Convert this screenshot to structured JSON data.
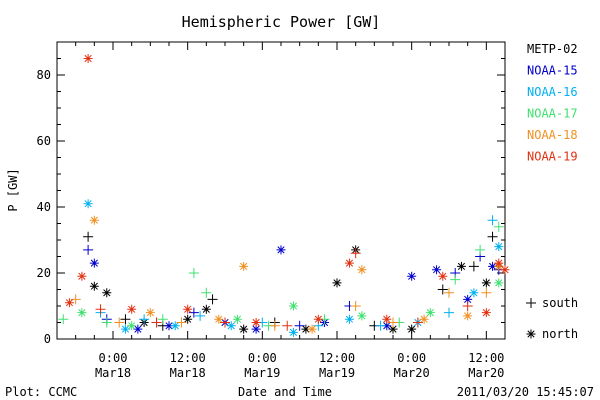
{
  "chart_data": {
    "type": "scatter",
    "title": "Hemispheric Power [GW]",
    "ylabel": "P [GW]",
    "xlabel": "Date and Time",
    "ylim": [
      0,
      90
    ],
    "y_ticks": [
      0,
      20,
      40,
      60,
      80
    ],
    "x_range": [
      "2011-03-17T15:00",
      "2011-03-20T15:00"
    ],
    "x_ticks": [
      {
        "t": "2011-03-18T00:00",
        "time": "0:00",
        "date": "Mar18"
      },
      {
        "t": "2011-03-18T12:00",
        "time": "12:00",
        "date": "Mar18"
      },
      {
        "t": "2011-03-19T00:00",
        "time": "0:00",
        "date": "Mar19"
      },
      {
        "t": "2011-03-19T12:00",
        "time": "12:00",
        "date": "Mar19"
      },
      {
        "t": "2011-03-20T00:00",
        "time": "0:00",
        "date": "Mar20"
      },
      {
        "t": "2011-03-20T12:00",
        "time": "12:00",
        "date": "Mar20"
      }
    ],
    "marker_legend": [
      {
        "symbol": "+",
        "label": "south"
      },
      {
        "symbol": "*",
        "label": "north"
      }
    ],
    "series": [
      {
        "name": "METP-02",
        "color": "#000000",
        "points": [
          [
            "2011-03-17T20:00",
            31,
            "+"
          ],
          [
            "2011-03-17T21:00",
            16,
            "*"
          ],
          [
            "2011-03-17T23:00",
            14,
            "*"
          ],
          [
            "2011-03-18T02:00",
            6,
            "+"
          ],
          [
            "2011-03-18T05:00",
            5,
            "*"
          ],
          [
            "2011-03-18T08:00",
            4,
            "+"
          ],
          [
            "2011-03-18T12:00",
            6,
            "*"
          ],
          [
            "2011-03-18T15:00",
            9,
            "*"
          ],
          [
            "2011-03-18T16:00",
            12,
            "+"
          ],
          [
            "2011-03-18T21:00",
            3,
            "*"
          ],
          [
            "2011-03-19T02:00",
            5,
            "+"
          ],
          [
            "2011-03-19T07:00",
            3,
            "*"
          ],
          [
            "2011-03-19T12:00",
            17,
            "*"
          ],
          [
            "2011-03-19T15:00",
            27,
            "*"
          ],
          [
            "2011-03-19T18:00",
            4,
            "+"
          ],
          [
            "2011-03-19T21:00",
            3,
            "*"
          ],
          [
            "2011-03-20T00:00",
            3,
            "*"
          ],
          [
            "2011-03-20T05:00",
            15,
            "+"
          ],
          [
            "2011-03-20T08:00",
            22,
            "*"
          ],
          [
            "2011-03-20T10:00",
            22,
            "+"
          ],
          [
            "2011-03-20T12:00",
            17,
            "*"
          ],
          [
            "2011-03-20T13:00",
            31,
            "+"
          ],
          [
            "2011-03-20T14:00",
            22,
            "*"
          ]
        ]
      },
      {
        "name": "NOAA-15",
        "color": "#0000cc",
        "points": [
          [
            "2011-03-17T20:00",
            27,
            "+"
          ],
          [
            "2011-03-17T21:00",
            23,
            "*"
          ],
          [
            "2011-03-17T23:00",
            6,
            "+"
          ],
          [
            "2011-03-18T04:00",
            3,
            "*"
          ],
          [
            "2011-03-18T07:00",
            5,
            "+"
          ],
          [
            "2011-03-18T09:00",
            4,
            "*"
          ],
          [
            "2011-03-18T13:00",
            8,
            "+"
          ],
          [
            "2011-03-18T18:00",
            5,
            "*"
          ],
          [
            "2011-03-18T23:00",
            3,
            "*"
          ],
          [
            "2011-03-19T03:00",
            27,
            "*"
          ],
          [
            "2011-03-19T06:00",
            4,
            "+"
          ],
          [
            "2011-03-19T10:00",
            5,
            "*"
          ],
          [
            "2011-03-19T14:00",
            10,
            "+"
          ],
          [
            "2011-03-19T20:00",
            4,
            "*"
          ],
          [
            "2011-03-20T00:00",
            19,
            "*"
          ],
          [
            "2011-03-20T04:00",
            21,
            "*"
          ],
          [
            "2011-03-20T07:00",
            20,
            "+"
          ],
          [
            "2011-03-20T09:00",
            12,
            "*"
          ],
          [
            "2011-03-20T11:00",
            25,
            "+"
          ],
          [
            "2011-03-20T13:00",
            22,
            "*"
          ],
          [
            "2011-03-20T14:00",
            21,
            "+"
          ]
        ]
      },
      {
        "name": "NOAA-16",
        "color": "#00b0f0",
        "points": [
          [
            "2011-03-17T20:00",
            41,
            "*"
          ],
          [
            "2011-03-17T22:00",
            8,
            "+"
          ],
          [
            "2011-03-18T02:00",
            3,
            "*"
          ],
          [
            "2011-03-18T05:00",
            6,
            "+"
          ],
          [
            "2011-03-18T10:00",
            4,
            "*"
          ],
          [
            "2011-03-18T14:00",
            7,
            "+"
          ],
          [
            "2011-03-18T19:00",
            4,
            "*"
          ],
          [
            "2011-03-19T00:00",
            5,
            "+"
          ],
          [
            "2011-03-19T05:00",
            2,
            "*"
          ],
          [
            "2011-03-19T09:00",
            4,
            "+"
          ],
          [
            "2011-03-19T14:00",
            6,
            "*"
          ],
          [
            "2011-03-19T19:00",
            4,
            "+"
          ],
          [
            "2011-03-20T01:00",
            5,
            "*"
          ],
          [
            "2011-03-20T06:00",
            8,
            "+"
          ],
          [
            "2011-03-20T10:00",
            14,
            "*"
          ],
          [
            "2011-03-20T13:00",
            36,
            "+"
          ],
          [
            "2011-03-20T14:00",
            28,
            "*"
          ]
        ]
      },
      {
        "name": "NOAA-17",
        "color": "#40e070",
        "points": [
          [
            "2011-03-17T16:00",
            6,
            "+"
          ],
          [
            "2011-03-17T19:00",
            8,
            "*"
          ],
          [
            "2011-03-17T23:00",
            5,
            "+"
          ],
          [
            "2011-03-18T03:00",
            4,
            "*"
          ],
          [
            "2011-03-18T08:00",
            6,
            "+"
          ],
          [
            "2011-03-18T13:00",
            20,
            "+"
          ],
          [
            "2011-03-18T15:00",
            14,
            "+"
          ],
          [
            "2011-03-18T20:00",
            6,
            "*"
          ],
          [
            "2011-03-19T01:00",
            4,
            "+"
          ],
          [
            "2011-03-19T05:00",
            10,
            "*"
          ],
          [
            "2011-03-19T10:00",
            6,
            "+"
          ],
          [
            "2011-03-19T16:00",
            7,
            "*"
          ],
          [
            "2011-03-19T22:00",
            5,
            "+"
          ],
          [
            "2011-03-20T03:00",
            8,
            "*"
          ],
          [
            "2011-03-20T07:00",
            18,
            "+"
          ],
          [
            "2011-03-20T11:00",
            27,
            "+"
          ],
          [
            "2011-03-20T14:00",
            34,
            "+"
          ],
          [
            "2011-03-20T14:00",
            17,
            "*"
          ]
        ]
      },
      {
        "name": "NOAA-18",
        "color": "#f09020",
        "points": [
          [
            "2011-03-17T18:00",
            12,
            "+"
          ],
          [
            "2011-03-17T21:00",
            36,
            "*"
          ],
          [
            "2011-03-18T01:00",
            5,
            "+"
          ],
          [
            "2011-03-18T06:00",
            8,
            "*"
          ],
          [
            "2011-03-18T11:00",
            5,
            "+"
          ],
          [
            "2011-03-18T17:00",
            6,
            "*"
          ],
          [
            "2011-03-18T21:00",
            22,
            "*"
          ],
          [
            "2011-03-19T02:00",
            4,
            "+"
          ],
          [
            "2011-03-19T08:00",
            3,
            "*"
          ],
          [
            "2011-03-19T15:00",
            10,
            "+"
          ],
          [
            "2011-03-19T16:00",
            21,
            "*"
          ],
          [
            "2011-03-19T21:00",
            5,
            "+"
          ],
          [
            "2011-03-20T02:00",
            6,
            "*"
          ],
          [
            "2011-03-20T06:00",
            14,
            "+"
          ],
          [
            "2011-03-20T09:00",
            7,
            "*"
          ],
          [
            "2011-03-20T12:00",
            14,
            "+"
          ],
          [
            "2011-03-20T14:00",
            22,
            "*"
          ]
        ]
      },
      {
        "name": "NOAA-19",
        "color": "#e03010",
        "points": [
          [
            "2011-03-17T17:00",
            11,
            "*"
          ],
          [
            "2011-03-17T19:00",
            19,
            "*"
          ],
          [
            "2011-03-17T20:00",
            85,
            "*"
          ],
          [
            "2011-03-17T22:00",
            9,
            "+"
          ],
          [
            "2011-03-18T03:00",
            9,
            "*"
          ],
          [
            "2011-03-18T07:00",
            5,
            "+"
          ],
          [
            "2011-03-18T12:00",
            9,
            "*"
          ],
          [
            "2011-03-18T18:00",
            5,
            "+"
          ],
          [
            "2011-03-18T23:00",
            5,
            "*"
          ],
          [
            "2011-03-19T04:00",
            4,
            "+"
          ],
          [
            "2011-03-19T09:00",
            6,
            "*"
          ],
          [
            "2011-03-19T14:00",
            23,
            "*"
          ],
          [
            "2011-03-19T15:00",
            26,
            "+"
          ],
          [
            "2011-03-19T20:00",
            6,
            "*"
          ],
          [
            "2011-03-20T01:00",
            5,
            "+"
          ],
          [
            "2011-03-20T05:00",
            19,
            "*"
          ],
          [
            "2011-03-20T09:00",
            10,
            "+"
          ],
          [
            "2011-03-20T12:00",
            8,
            "*"
          ],
          [
            "2011-03-20T14:00",
            23,
            "*"
          ],
          [
            "2011-03-20T15:00",
            21,
            "*"
          ]
        ]
      }
    ]
  },
  "footer": {
    "plot_credit": "Plot: CCMC",
    "timestamp": "2011/03/20 15:45:07"
  }
}
